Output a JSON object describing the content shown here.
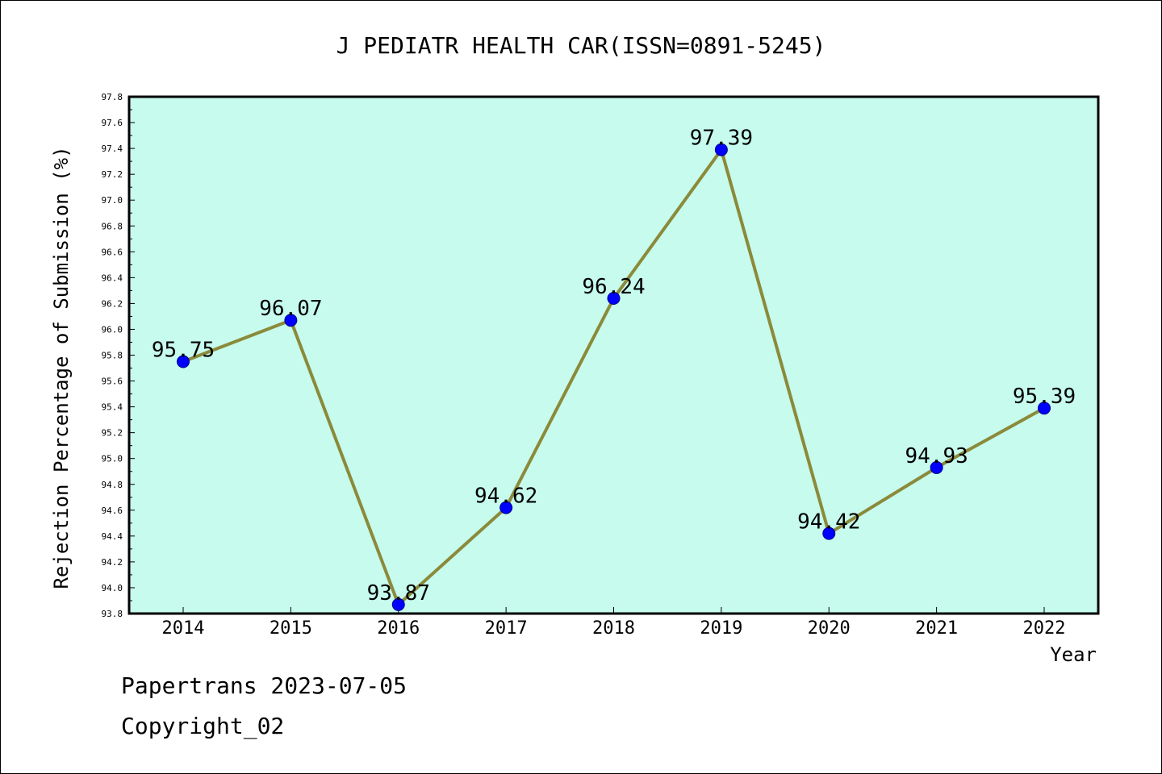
{
  "chart_data": {
    "type": "line",
    "title": "J PEDIATR HEALTH CAR(ISSN=0891-5245)",
    "xlabel": "Year",
    "ylabel": "Rejection Percentage of Submission (%)",
    "categories": [
      "2014",
      "2015",
      "2016",
      "2017",
      "2018",
      "2019",
      "2020",
      "2021",
      "2022"
    ],
    "series": [
      {
        "values": [
          95.75,
          96.07,
          93.87,
          94.62,
          96.24,
          97.39,
          94.42,
          94.93,
          95.39
        ],
        "labels": [
          "95.75",
          "96.07",
          "93.87",
          "94.62",
          "96.24",
          "97.39",
          "94.42",
          "94.93",
          "95.39"
        ]
      }
    ],
    "ylim": [
      93.8,
      97.8
    ],
    "yticks": [
      "93.8",
      "94.0",
      "94.2",
      "94.4",
      "94.6",
      "94.8",
      "95.0",
      "95.2",
      "95.4",
      "95.6",
      "95.8",
      "96.0",
      "96.2",
      "96.4",
      "96.6",
      "96.8",
      "97.0",
      "97.2",
      "97.4",
      "97.6",
      "97.8"
    ],
    "grid": false,
    "colors": {
      "plot_background": "#c6fbed",
      "line": "#8b8a3a",
      "marker": "#0000ff"
    }
  },
  "footer": {
    "line1": "Papertrans 2023-07-05",
    "line2": "Copyright_02"
  }
}
